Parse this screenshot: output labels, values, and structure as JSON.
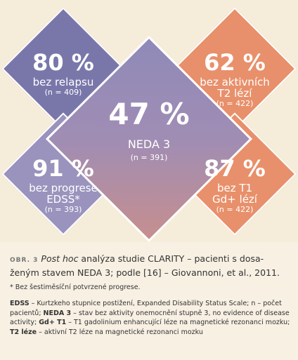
{
  "colors": {
    "purple_dark": "#7977aa",
    "purple_mid": "#9a93bd",
    "orange": "#e8906b",
    "center_top": "#8f8ab8",
    "center_bottom": "#c68f8e",
    "background": "#f5ecd9"
  },
  "boxes": {
    "top_left": {
      "pct": "80 %",
      "lines": [
        "bez relapsu"
      ],
      "n": "(n = 409)"
    },
    "top_right": {
      "pct": "62 %",
      "lines": [
        "bez aktivních",
        "T2 lézí"
      ],
      "n": "(n = 422)"
    },
    "center": {
      "pct": "47 %",
      "lines": [
        "NEDA 3"
      ],
      "n": "(n = 391)"
    },
    "bottom_left": {
      "pct": "91 %",
      "lines": [
        "bez progrese",
        "EDSS*"
      ],
      "n": "(n = 393)"
    },
    "bottom_right": {
      "pct": "87 %",
      "lines": [
        "bez T1",
        "Gd+ lézí"
      ],
      "n": "(n = 422)"
    }
  },
  "caption": {
    "fig_label": "OBR. 3",
    "post_hoc": "Post hoc",
    "text": " analýza studie CLARITY – pacienti s dosa-ženým stavem NEDA 3; podle [16] – Giovannoni, et al., 2011.",
    "footnote": "* Bez šestiměsíční potvrzené progrese.",
    "abbr": [
      {
        "term": "EDSS",
        "def": " – Kurtzkeho stupnice postižení, Expanded Disability Status Scale; n – počet pacientů; "
      },
      {
        "term": "NEDA 3",
        "def": " – stav bez aktivity onemocnění stupně 3, no evidence of disease activity; "
      },
      {
        "term": "Gd+ T1",
        "def": " – T1 gadolinium enhancující léze na magnetické rezonanci mozku; "
      },
      {
        "term": "T2 léze",
        "def": " – aktivní T2 léze na magnetické rezonanci mozku"
      }
    ]
  }
}
